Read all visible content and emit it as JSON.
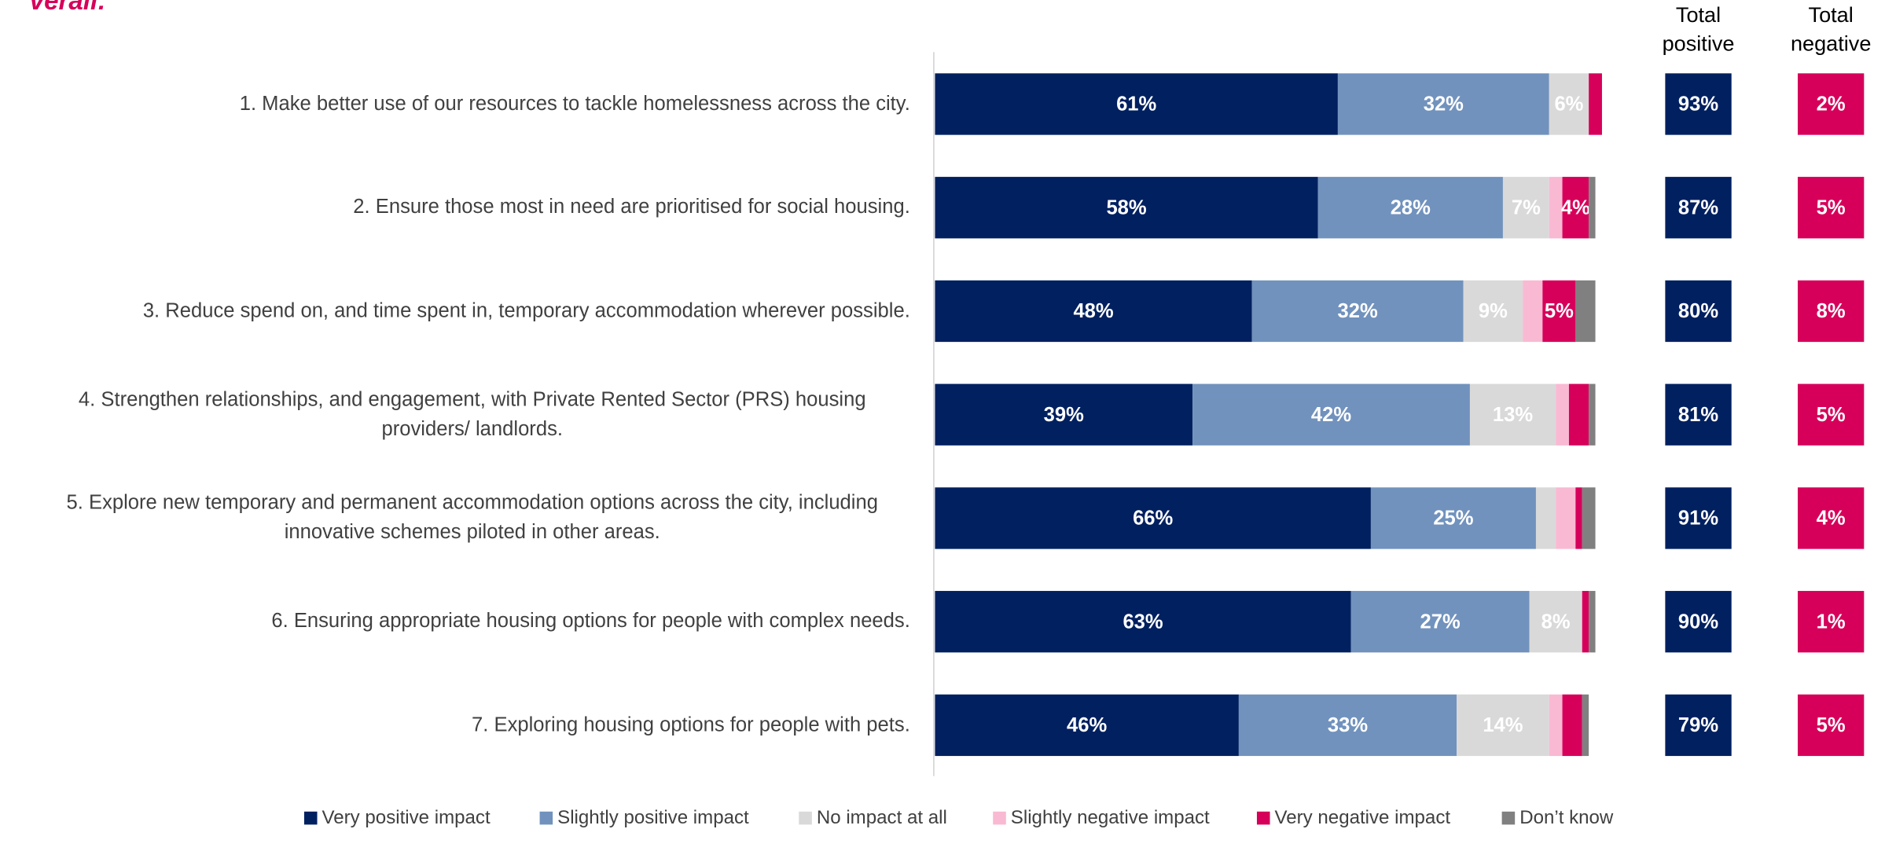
{
  "chart_data": {
    "type": "stacked-bar-horizontal",
    "title": "verall:",
    "categories": [
      "1. Make better use of our resources to tackle homelessness across the city.",
      "2. Ensure those most in need are prioritised for social housing.",
      "3. Reduce spend on, and time spent in, temporary accommodation wherever possible.",
      "4. Strengthen relationships, and engagement, with Private Rented Sector (PRS) housing providers/ landlords.",
      "5. Explore new temporary and permanent accommodation options across the city, including innovative schemes piloted in other areas.",
      "6. Ensuring appropriate housing options for people with complex needs.",
      "7. Exploring housing options for people with pets."
    ],
    "xlim": [
      0,
      100
    ],
    "series": [
      {
        "name": "Very positive impact",
        "color": "#002060",
        "values": [
          61,
          58,
          48,
          39,
          66,
          63,
          46
        ],
        "value_labels": [
          "61%",
          "58%",
          "48%",
          "39%",
          "66%",
          "63%",
          "46%"
        ]
      },
      {
        "name": "Slightly positive impact",
        "color": "#7192bd",
        "values": [
          32,
          28,
          32,
          42,
          25,
          27,
          33
        ],
        "value_labels": [
          "32%",
          "28%",
          "32%",
          "42%",
          "25%",
          "27%",
          "33%"
        ]
      },
      {
        "name": "No impact at all",
        "color": "#d9d9d9",
        "values": [
          6,
          7,
          9,
          13,
          3,
          8,
          14
        ],
        "value_labels": [
          "6%",
          "7%",
          "9%",
          "13%",
          null,
          "8%",
          "14%"
        ]
      },
      {
        "name": "Slightly negative impact",
        "color": "#f9b9d2",
        "values": [
          0,
          2,
          3,
          2,
          3,
          0,
          2
        ]
      },
      {
        "name": "Very negative impact",
        "color": "#d6005a",
        "values": [
          2,
          4,
          5,
          3,
          1,
          1,
          3
        ],
        "value_labels": [
          null,
          "4%",
          "5%",
          null,
          null,
          null,
          null
        ]
      },
      {
        "name": "Don’t know",
        "color": "#808080",
        "values": [
          0,
          1,
          3,
          1,
          2,
          1,
          1
        ]
      }
    ],
    "totals": [
      {
        "header": [
          "Total",
          "positive"
        ],
        "color": "#002060",
        "labels": [
          "93%",
          "87%",
          "80%",
          "81%",
          "91%",
          "90%",
          "79%"
        ]
      },
      {
        "header": [
          "Total",
          "negative"
        ],
        "color": "#d6005a",
        "labels": [
          "2%",
          "5%",
          "8%",
          "5%",
          "4%",
          "1%",
          "5%"
        ]
      }
    ]
  }
}
